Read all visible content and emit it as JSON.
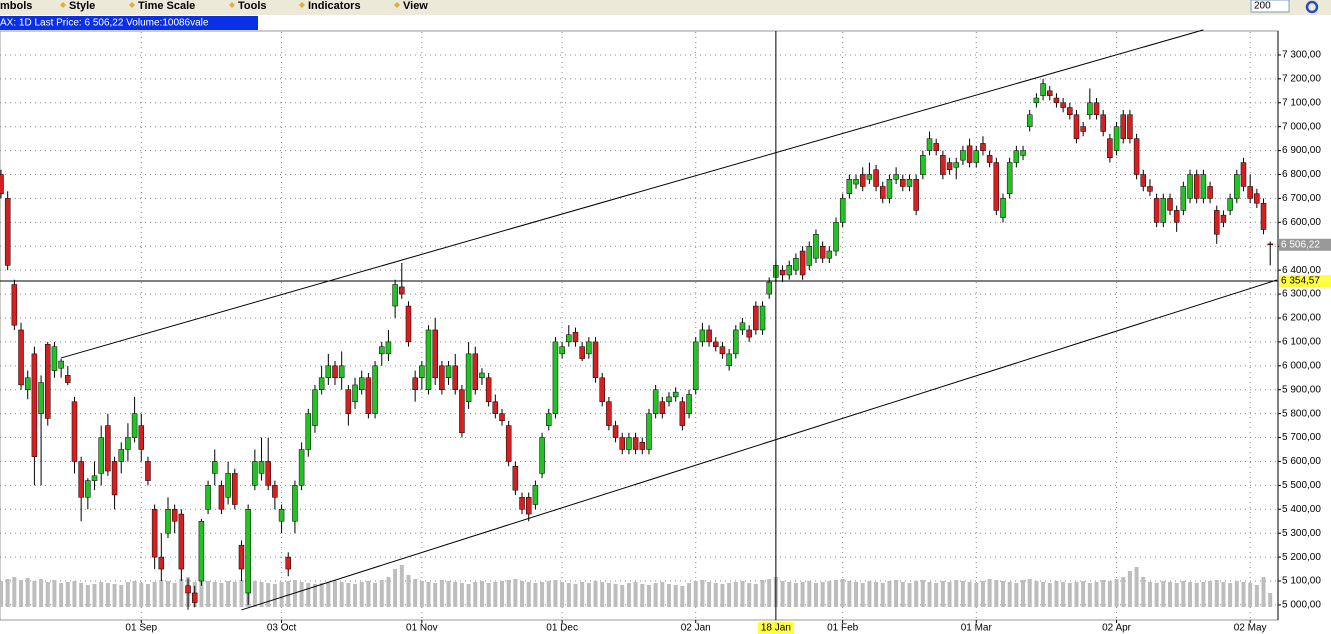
{
  "toolbar": {
    "items": [
      "mbols",
      "Style",
      "Time Scale",
      "Tools",
      "Indicators",
      "View"
    ],
    "count_input": "200"
  },
  "header": "AX: 1D Last Price: 6 506,22 Volume:10086vale",
  "chart_data": {
    "type": "candlestick",
    "ylim": [
      4937,
      7396
    ],
    "yticks": [
      {
        "value": 5000,
        "label": "5 000,00"
      },
      {
        "value": 5100,
        "label": "5 100,00"
      },
      {
        "value": 5200,
        "label": "5 200,00"
      },
      {
        "value": 5300,
        "label": "5 300,00"
      },
      {
        "value": 5400,
        "label": "5 400,00"
      },
      {
        "value": 5500,
        "label": "5 500,00"
      },
      {
        "value": 5600,
        "label": "5 600,00"
      },
      {
        "value": 5700,
        "label": "5 700,00"
      },
      {
        "value": 5800,
        "label": "5 800,00"
      },
      {
        "value": 5900,
        "label": "5 900,00"
      },
      {
        "value": 6000,
        "label": "6 000,00"
      },
      {
        "value": 6100,
        "label": "6 100,00"
      },
      {
        "value": 6200,
        "label": "6 200,00"
      },
      {
        "value": 6300,
        "label": "6 300,00"
      },
      {
        "value": 6400,
        "label": "6 400,00"
      },
      {
        "value": 6500,
        "label": "6 500,00"
      },
      {
        "value": 6600,
        "label": "6 600,00"
      },
      {
        "value": 6700,
        "label": "6 700,00"
      },
      {
        "value": 6800,
        "label": "6 800,00"
      },
      {
        "value": 6900,
        "label": "6 900,00"
      },
      {
        "value": 7000,
        "label": "7 000,00"
      },
      {
        "value": 7100,
        "label": "7 100,00"
      },
      {
        "value": 7200,
        "label": "7 200,00"
      },
      {
        "value": 7300,
        "label": "7 300,00"
      }
    ],
    "xticks": [
      {
        "value": 21,
        "label": "01 Sep"
      },
      {
        "value": 42,
        "label": "03 Oct"
      },
      {
        "value": 63,
        "label": "01 Nov"
      },
      {
        "value": 84,
        "label": "01 Dec"
      },
      {
        "value": 104,
        "label": "02 Jan"
      },
      {
        "value": 126,
        "label": "01 Feb"
      },
      {
        "value": 146,
        "label": "01 Mar"
      },
      {
        "value": 167,
        "label": "02 Apr"
      },
      {
        "value": 187,
        "label": "02 May"
      }
    ],
    "grid": true,
    "up_color": "#22c322",
    "down_color": "#d42020",
    "volume_color": "#bdbdbd",
    "candles": [
      [
        6800,
        6820,
        6700,
        6720
      ],
      [
        6700,
        6730,
        6400,
        6420
      ],
      [
        6340,
        6360,
        6150,
        6170
      ],
      [
        6150,
        6180,
        5900,
        5920
      ],
      [
        5900,
        5980,
        5860,
        5950
      ],
      [
        6050,
        6080,
        5500,
        5620
      ],
      [
        5800,
        5960,
        5500,
        5930
      ],
      [
        6090,
        6100,
        5750,
        5780
      ],
      [
        5980,
        6100,
        5950,
        6080
      ],
      [
        5990,
        6030,
        5950,
        6020
      ],
      [
        5960,
        6000,
        5920,
        5930
      ],
      [
        5850,
        5870,
        5550,
        5600
      ],
      [
        5600,
        5620,
        5350,
        5450
      ],
      [
        5450,
        5530,
        5400,
        5520
      ],
      [
        5520,
        5600,
        5480,
        5540
      ],
      [
        5550,
        5750,
        5500,
        5700
      ],
      [
        5750,
        5800,
        5540,
        5560
      ],
      [
        5600,
        5620,
        5400,
        5460
      ],
      [
        5600,
        5680,
        5550,
        5650
      ],
      [
        5650,
        5760,
        5600,
        5700
      ],
      [
        5700,
        5870,
        5680,
        5800
      ],
      [
        5750,
        5800,
        5600,
        5650
      ],
      [
        5600,
        5620,
        5500,
        5520
      ],
      [
        5400,
        5420,
        5150,
        5200
      ],
      [
        5200,
        5300,
        5100,
        5150
      ],
      [
        5300,
        5450,
        5280,
        5400
      ],
      [
        5400,
        5420,
        5300,
        5350
      ],
      [
        5380,
        5400,
        5100,
        5150
      ],
      [
        5080,
        5110,
        4980,
        5050
      ],
      [
        5050,
        5080,
        4990,
        5010
      ],
      [
        5100,
        5360,
        5080,
        5350
      ],
      [
        5400,
        5520,
        5380,
        5500
      ],
      [
        5550,
        5650,
        5500,
        5600
      ],
      [
        5500,
        5520,
        5380,
        5400
      ],
      [
        5450,
        5600,
        5420,
        5550
      ],
      [
        5550,
        5570,
        5400,
        5420
      ],
      [
        5250,
        5270,
        5100,
        5150
      ],
      [
        5050,
        5420,
        5000,
        5400
      ],
      [
        5500,
        5650,
        5480,
        5600
      ],
      [
        5550,
        5700,
        5520,
        5600
      ],
      [
        5600,
        5700,
        5480,
        5500
      ],
      [
        5500,
        5520,
        5400,
        5450
      ],
      [
        5350,
        5420,
        5300,
        5400
      ],
      [
        5200,
        5220,
        5120,
        5150
      ],
      [
        5350,
        5520,
        5300,
        5500
      ],
      [
        5500,
        5680,
        5480,
        5650
      ],
      [
        5650,
        5820,
        5620,
        5800
      ],
      [
        5750,
        5920,
        5720,
        5900
      ],
      [
        5900,
        6000,
        5880,
        5950
      ],
      [
        5950,
        6050,
        5920,
        6000
      ],
      [
        6000,
        6020,
        5920,
        5950
      ],
      [
        5950,
        6060,
        5900,
        6000
      ],
      [
        5900,
        5920,
        5750,
        5800
      ],
      [
        5850,
        5950,
        5820,
        5920
      ],
      [
        5900,
        5980,
        5880,
        5950
      ],
      [
        5950,
        5970,
        5780,
        5800
      ],
      [
        5800,
        6020,
        5780,
        6000
      ],
      [
        6050,
        6100,
        6000,
        6080
      ],
      [
        6050,
        6150,
        6020,
        6100
      ],
      [
        6250,
        6360,
        6200,
        6340
      ],
      [
        6330,
        6430,
        6280,
        6300
      ],
      [
        6250,
        6270,
        6080,
        6100
      ],
      [
        5950,
        5980,
        5850,
        5900
      ],
      [
        5950,
        6020,
        5900,
        6000
      ],
      [
        5900,
        6170,
        5880,
        6150
      ],
      [
        6150,
        6200,
        5920,
        5950
      ],
      [
        6000,
        6020,
        5880,
        5900
      ],
      [
        5950,
        6020,
        5920,
        6000
      ],
      [
        6000,
        6050,
        5880,
        5900
      ],
      [
        5900,
        5920,
        5700,
        5720
      ],
      [
        5850,
        6100,
        5820,
        6050
      ],
      [
        6050,
        6080,
        5880,
        5900
      ],
      [
        5950,
        5990,
        5920,
        5970
      ],
      [
        5950,
        5970,
        5830,
        5850
      ],
      [
        5850,
        5880,
        5780,
        5800
      ],
      [
        5800,
        5820,
        5750,
        5770
      ],
      [
        5750,
        5770,
        5580,
        5600
      ],
      [
        5580,
        5600,
        5460,
        5480
      ],
      [
        5450,
        5470,
        5380,
        5400
      ],
      [
        5450,
        5470,
        5350,
        5380
      ],
      [
        5420,
        5520,
        5400,
        5500
      ],
      [
        5550,
        5720,
        5530,
        5700
      ],
      [
        5750,
        5820,
        5730,
        5800
      ],
      [
        5800,
        6120,
        5780,
        6100
      ],
      [
        6050,
        6100,
        6030,
        6080
      ],
      [
        6100,
        6170,
        6080,
        6130
      ],
      [
        6140,
        6160,
        6080,
        6100
      ],
      [
        6080,
        6100,
        6020,
        6030
      ],
      [
        6050,
        6120,
        6030,
        6100
      ],
      [
        6100,
        6120,
        5930,
        5950
      ],
      [
        5950,
        5970,
        5830,
        5850
      ],
      [
        5850,
        5870,
        5730,
        5750
      ],
      [
        5750,
        5770,
        5680,
        5700
      ],
      [
        5700,
        5720,
        5630,
        5650
      ],
      [
        5650,
        5720,
        5630,
        5700
      ],
      [
        5700,
        5720,
        5630,
        5650
      ],
      [
        5680,
        5700,
        5630,
        5650
      ],
      [
        5650,
        5820,
        5630,
        5800
      ],
      [
        5800,
        5920,
        5780,
        5900
      ],
      [
        5850,
        5870,
        5780,
        5800
      ],
      [
        5850,
        5890,
        5830,
        5870
      ],
      [
        5870,
        5910,
        5850,
        5890
      ],
      [
        5850,
        5870,
        5730,
        5750
      ],
      [
        5800,
        5900,
        5780,
        5880
      ],
      [
        5900,
        6120,
        5880,
        6100
      ],
      [
        6100,
        6180,
        6080,
        6150
      ],
      [
        6150,
        6170,
        6080,
        6100
      ],
      [
        6100,
        6120,
        6060,
        6080
      ],
      [
        6080,
        6100,
        6030,
        6050
      ],
      [
        6000,
        6070,
        5980,
        6050
      ],
      [
        6050,
        6170,
        6030,
        6150
      ],
      [
        6150,
        6200,
        6130,
        6180
      ],
      [
        6150,
        6170,
        6100,
        6120
      ],
      [
        6250,
        6270,
        6130,
        6150
      ],
      [
        6150,
        6270,
        6130,
        6250
      ],
      [
        6300,
        6370,
        6280,
        6350
      ],
      [
        6370,
        6440,
        6350,
        6420
      ],
      [
        6400,
        6420,
        6350,
        6380
      ],
      [
        6380,
        6440,
        6360,
        6420
      ],
      [
        6400,
        6470,
        6380,
        6450
      ],
      [
        6480,
        6500,
        6360,
        6380
      ],
      [
        6420,
        6520,
        6400,
        6500
      ],
      [
        6450,
        6570,
        6430,
        6550
      ],
      [
        6500,
        6520,
        6430,
        6450
      ],
      [
        6450,
        6500,
        6430,
        6480
      ],
      [
        6480,
        6620,
        6460,
        6600
      ],
      [
        6600,
        6720,
        6580,
        6700
      ],
      [
        6720,
        6800,
        6700,
        6780
      ],
      [
        6760,
        6800,
        6740,
        6780
      ],
      [
        6800,
        6830,
        6730,
        6750
      ],
      [
        6780,
        6850,
        6760,
        6800
      ],
      [
        6820,
        6840,
        6730,
        6750
      ],
      [
        6750,
        6770,
        6680,
        6700
      ],
      [
        6700,
        6800,
        6680,
        6780
      ],
      [
        6780,
        6830,
        6760,
        6800
      ],
      [
        6780,
        6800,
        6730,
        6750
      ],
      [
        6750,
        6800,
        6730,
        6780
      ],
      [
        6780,
        6800,
        6630,
        6650
      ],
      [
        6800,
        6900,
        6780,
        6880
      ],
      [
        6900,
        6980,
        6880,
        6950
      ],
      [
        6930,
        6950,
        6880,
        6900
      ],
      [
        6880,
        6900,
        6780,
        6800
      ],
      [
        6850,
        6870,
        6800,
        6820
      ],
      [
        6830,
        6870,
        6780,
        6850
      ],
      [
        6860,
        6920,
        6840,
        6900
      ],
      [
        6920,
        6950,
        6830,
        6850
      ],
      [
        6850,
        6920,
        6830,
        6900
      ],
      [
        6930,
        6960,
        6880,
        6900
      ],
      [
        6880,
        6900,
        6830,
        6850
      ],
      [
        6850,
        6870,
        6630,
        6650
      ],
      [
        6620,
        6720,
        6600,
        6700
      ],
      [
        6720,
        6870,
        6700,
        6850
      ],
      [
        6850,
        6920,
        6830,
        6900
      ],
      [
        6880,
        6920,
        6860,
        6900
      ],
      [
        7000,
        7070,
        6980,
        7050
      ],
      [
        7100,
        7140,
        7080,
        7120
      ],
      [
        7130,
        7200,
        7110,
        7180
      ],
      [
        7150,
        7170,
        7110,
        7130
      ],
      [
        7120,
        7140,
        7080,
        7100
      ],
      [
        7100,
        7120,
        7060,
        7080
      ],
      [
        7080,
        7100,
        7030,
        7050
      ],
      [
        7050,
        7070,
        6930,
        6950
      ],
      [
        7000,
        7020,
        6960,
        6980
      ],
      [
        7050,
        7160,
        7030,
        7100
      ],
      [
        7100,
        7120,
        7030,
        7050
      ],
      [
        7050,
        7070,
        6960,
        6980
      ],
      [
        6950,
        6970,
        6850,
        6870
      ],
      [
        6900,
        7020,
        6880,
        7000
      ],
      [
        7050,
        7070,
        6930,
        6950
      ],
      [
        7050,
        7070,
        6930,
        6950
      ],
      [
        6950,
        6970,
        6780,
        6800
      ],
      [
        6800,
        6820,
        6730,
        6750
      ],
      [
        6750,
        6780,
        6710,
        6730
      ],
      [
        6700,
        6720,
        6580,
        6600
      ],
      [
        6600,
        6720,
        6580,
        6700
      ],
      [
        6700,
        6720,
        6630,
        6650
      ],
      [
        6650,
        6670,
        6560,
        6600
      ],
      [
        6650,
        6770,
        6630,
        6750
      ],
      [
        6700,
        6820,
        6680,
        6800
      ],
      [
        6800,
        6820,
        6680,
        6700
      ],
      [
        6700,
        6820,
        6680,
        6800
      ],
      [
        6750,
        6770,
        6680,
        6700
      ],
      [
        6650,
        6670,
        6510,
        6550
      ],
      [
        6630,
        6650,
        6580,
        6600
      ],
      [
        6650,
        6720,
        6630,
        6700
      ],
      [
        6700,
        6820,
        6680,
        6800
      ],
      [
        6850,
        6870,
        6730,
        6750
      ],
      [
        6750,
        6800,
        6680,
        6700
      ],
      [
        6720,
        6740,
        6660,
        6680
      ],
      [
        6680,
        6700,
        6550,
        6570
      ],
      [
        6510,
        6520,
        6420,
        6506.22
      ]
    ],
    "volume_lim": [
      0,
      100
    ],
    "volume": [
      26,
      28,
      30,
      27,
      29,
      26,
      28,
      25,
      27,
      24,
      25,
      26,
      24,
      22,
      23,
      25,
      24,
      23,
      22,
      25,
      26,
      24,
      23,
      25,
      27,
      26,
      24,
      28,
      30,
      25,
      27,
      26,
      25,
      24,
      26,
      25,
      27,
      28,
      26,
      25,
      24,
      23,
      25,
      26,
      27,
      25,
      24,
      23,
      24,
      25,
      26,
      25,
      24,
      23,
      25,
      26,
      24,
      27,
      30,
      38,
      42,
      32,
      28,
      26,
      25,
      24,
      27,
      26,
      25,
      24,
      23,
      25,
      26,
      24,
      25,
      26,
      27,
      28,
      26,
      25,
      24,
      25,
      26,
      27,
      25,
      24,
      23,
      25,
      24,
      26,
      25,
      24,
      23,
      22,
      24,
      25,
      23,
      22,
      24,
      25,
      23,
      22,
      21,
      24,
      26,
      27,
      25,
      24,
      23,
      24,
      25,
      26,
      24,
      23,
      27,
      28,
      30,
      26,
      25,
      24,
      25,
      26,
      24,
      25,
      26,
      27,
      28,
      26,
      25,
      24,
      26,
      25,
      24,
      26,
      27,
      25,
      24,
      26,
      27,
      25,
      24,
      26,
      25,
      27,
      26,
      25,
      24,
      26,
      28,
      27,
      26,
      25,
      24,
      27,
      28,
      26,
      25,
      24,
      26,
      25,
      24,
      25,
      26,
      24,
      25,
      27,
      26,
      28,
      30,
      36,
      40,
      30,
      25,
      24,
      26,
      25,
      24,
      26,
      25,
      24,
      25,
      26,
      27,
      25,
      24,
      26,
      25,
      24,
      22,
      30,
      14
    ],
    "trendlines": [
      {
        "x": [
          9,
          180
        ],
        "y": [
          6033,
          7405
        ]
      },
      {
        "x": [
          36,
          191
        ],
        "y": [
          4979,
          6359
        ]
      }
    ],
    "level": {
      "value": 6354.57,
      "label": "6 354,57"
    },
    "last_price": {
      "value": 6506.22,
      "label": "6 506,22"
    },
    "crosshair": {
      "x": 116,
      "label": "18 Jan"
    }
  }
}
